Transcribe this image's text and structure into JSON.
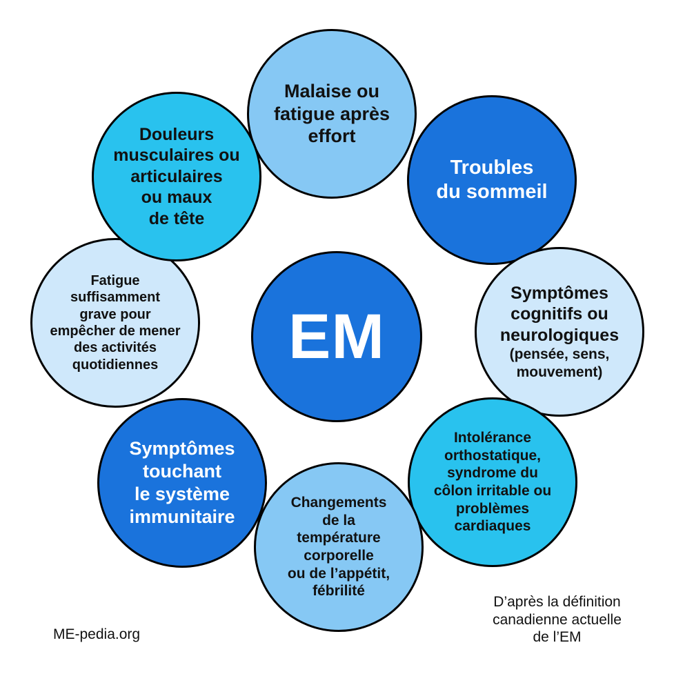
{
  "center": {
    "label": "EM"
  },
  "symptoms": [
    {
      "id": "top",
      "lines": [
        "Malaise ou",
        "fatigue après",
        "effort"
      ]
    },
    {
      "id": "topright",
      "lines": [
        "Troubles",
        "du sommeil"
      ]
    },
    {
      "id": "right",
      "lines": [
        "Symptômes",
        "cognitifs ou",
        "neurologiques"
      ],
      "sub_lines": [
        "(pensée, sens,",
        "mouvement)"
      ]
    },
    {
      "id": "botright",
      "lines": [
        "Intolérance",
        "orthostatique,",
        "syndrome du",
        "côlon irritable ou",
        "problèmes",
        "cardiaques"
      ]
    },
    {
      "id": "bottom",
      "lines": [
        "Changements",
        "de la",
        "température",
        "corporelle",
        "ou de l’appétit,",
        "fébrilité"
      ]
    },
    {
      "id": "botleft",
      "lines": [
        "Symptômes",
        "touchant",
        "le système",
        "immunitaire"
      ]
    },
    {
      "id": "left",
      "lines": [
        "Fatigue",
        "suffisamment",
        "grave pour",
        "empêcher de mener",
        "des activités",
        "quotidiennes"
      ]
    },
    {
      "id": "topleft",
      "lines": [
        "Douleurs",
        "musculaires ou",
        "articulaires",
        "ou maux",
        "de tête"
      ]
    }
  ],
  "footer": {
    "source": "ME-pedia.org",
    "definition_lines": [
      "D’après la définition",
      "canadienne actuelle",
      "de l’EM"
    ]
  },
  "colors": {
    "light": "#cfe8fb",
    "sky": "#86c8f4",
    "cyan": "#29c2ee",
    "blue": "#1a73dc",
    "outline": "#000000"
  }
}
